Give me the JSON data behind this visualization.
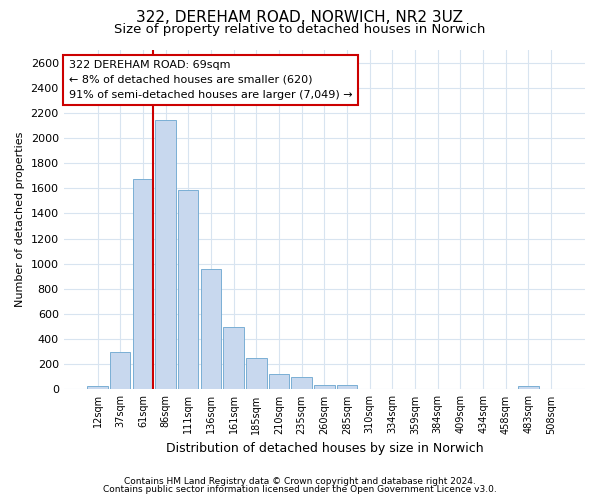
{
  "title": "322, DEREHAM ROAD, NORWICH, NR2 3UZ",
  "subtitle": "Size of property relative to detached houses in Norwich",
  "xlabel": "Distribution of detached houses by size in Norwich",
  "ylabel": "Number of detached properties",
  "footnote1": "Contains HM Land Registry data © Crown copyright and database right 2024.",
  "footnote2": "Contains public sector information licensed under the Open Government Licence v3.0.",
  "categories": [
    "12sqm",
    "37sqm",
    "61sqm",
    "86sqm",
    "111sqm",
    "136sqm",
    "161sqm",
    "185sqm",
    "210sqm",
    "235sqm",
    "260sqm",
    "285sqm",
    "310sqm",
    "334sqm",
    "359sqm",
    "384sqm",
    "409sqm",
    "434sqm",
    "458sqm",
    "483sqm",
    "508sqm"
  ],
  "values": [
    25,
    300,
    1670,
    2140,
    1590,
    960,
    500,
    250,
    120,
    100,
    35,
    35,
    0,
    0,
    0,
    0,
    0,
    0,
    0,
    25,
    0
  ],
  "bar_color": "#c8d8ee",
  "bar_edge_color": "#7aafd4",
  "vline_color": "#cc0000",
  "annotation_line1": "322 DEREHAM ROAD: 69sqm",
  "annotation_line2": "← 8% of detached houses are smaller (620)",
  "annotation_line3": "91% of semi-detached houses are larger (7,049) →",
  "annotation_box_edge_color": "#cc0000",
  "ylim_max": 2700,
  "ytick_step": 200,
  "bg_color": "#ffffff",
  "grid_color": "#d8e4f0",
  "title_fontsize": 11,
  "subtitle_fontsize": 9.5,
  "xlabel_fontsize": 9,
  "ylabel_fontsize": 8,
  "tick_fontsize": 8,
  "annot_fontsize": 8
}
